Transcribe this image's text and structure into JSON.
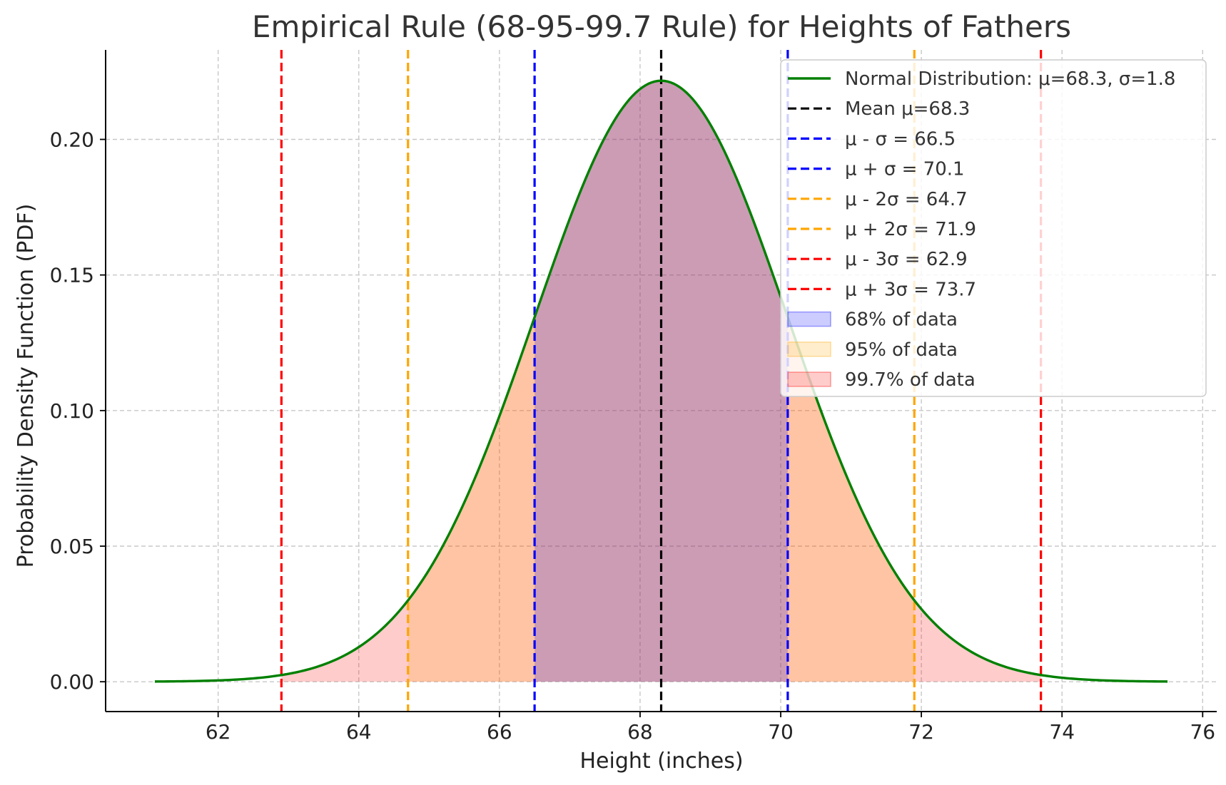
{
  "chart_data": {
    "type": "line",
    "title": "Empirical Rule (68-95-99.7 Rule) for Heights of Fathers",
    "xlabel": "Height (inches)",
    "ylabel": "Probability Density Function (PDF)",
    "xlim": [
      60.4,
      76.2
    ],
    "ylim": [
      -0.011,
      0.233
    ],
    "xticks": [
      62,
      64,
      66,
      68,
      70,
      72,
      74,
      76
    ],
    "yticks": [
      0.0,
      0.05,
      0.1,
      0.15,
      0.2
    ],
    "ytick_labels": [
      "0.00",
      "0.05",
      "0.10",
      "0.15",
      "0.20"
    ],
    "grid": true,
    "curve": {
      "name": "Normal Distribution: μ=68.3, σ=1.8",
      "distribution": "normal",
      "mu": 68.3,
      "sigma": 1.8,
      "x_range": [
        61.1,
        75.5
      ],
      "color": "#008000"
    },
    "vertical_lines": [
      {
        "name": "Mean μ=68.3",
        "x": 68.3,
        "color": "#000000"
      },
      {
        "name": "μ - σ = 66.5",
        "x": 66.5,
        "color": "#0000ff"
      },
      {
        "name": "μ + σ = 70.1",
        "x": 70.1,
        "color": "#0000ff"
      },
      {
        "name": "μ - 2σ = 64.7",
        "x": 64.7,
        "color": "#ffa500"
      },
      {
        "name": "μ + 2σ = 71.9",
        "x": 71.9,
        "color": "#ffa500"
      },
      {
        "name": "μ - 3σ = 62.9",
        "x": 62.9,
        "color": "#ff0000"
      },
      {
        "name": "μ + 3σ = 73.7",
        "x": 73.7,
        "color": "#ff0000"
      }
    ],
    "shaded_regions": [
      {
        "name": "68% of data",
        "x_range": [
          66.5,
          70.1
        ],
        "color": "#0000ff",
        "opacity": 0.2
      },
      {
        "name": "95% of data",
        "x_range": [
          64.7,
          71.9
        ],
        "color": "#ffa500",
        "opacity": 0.2
      },
      {
        "name": "99.7% of data",
        "x_range": [
          62.9,
          73.7
        ],
        "color": "#ff0000",
        "opacity": 0.2
      }
    ],
    "legend_position": "top-right"
  }
}
